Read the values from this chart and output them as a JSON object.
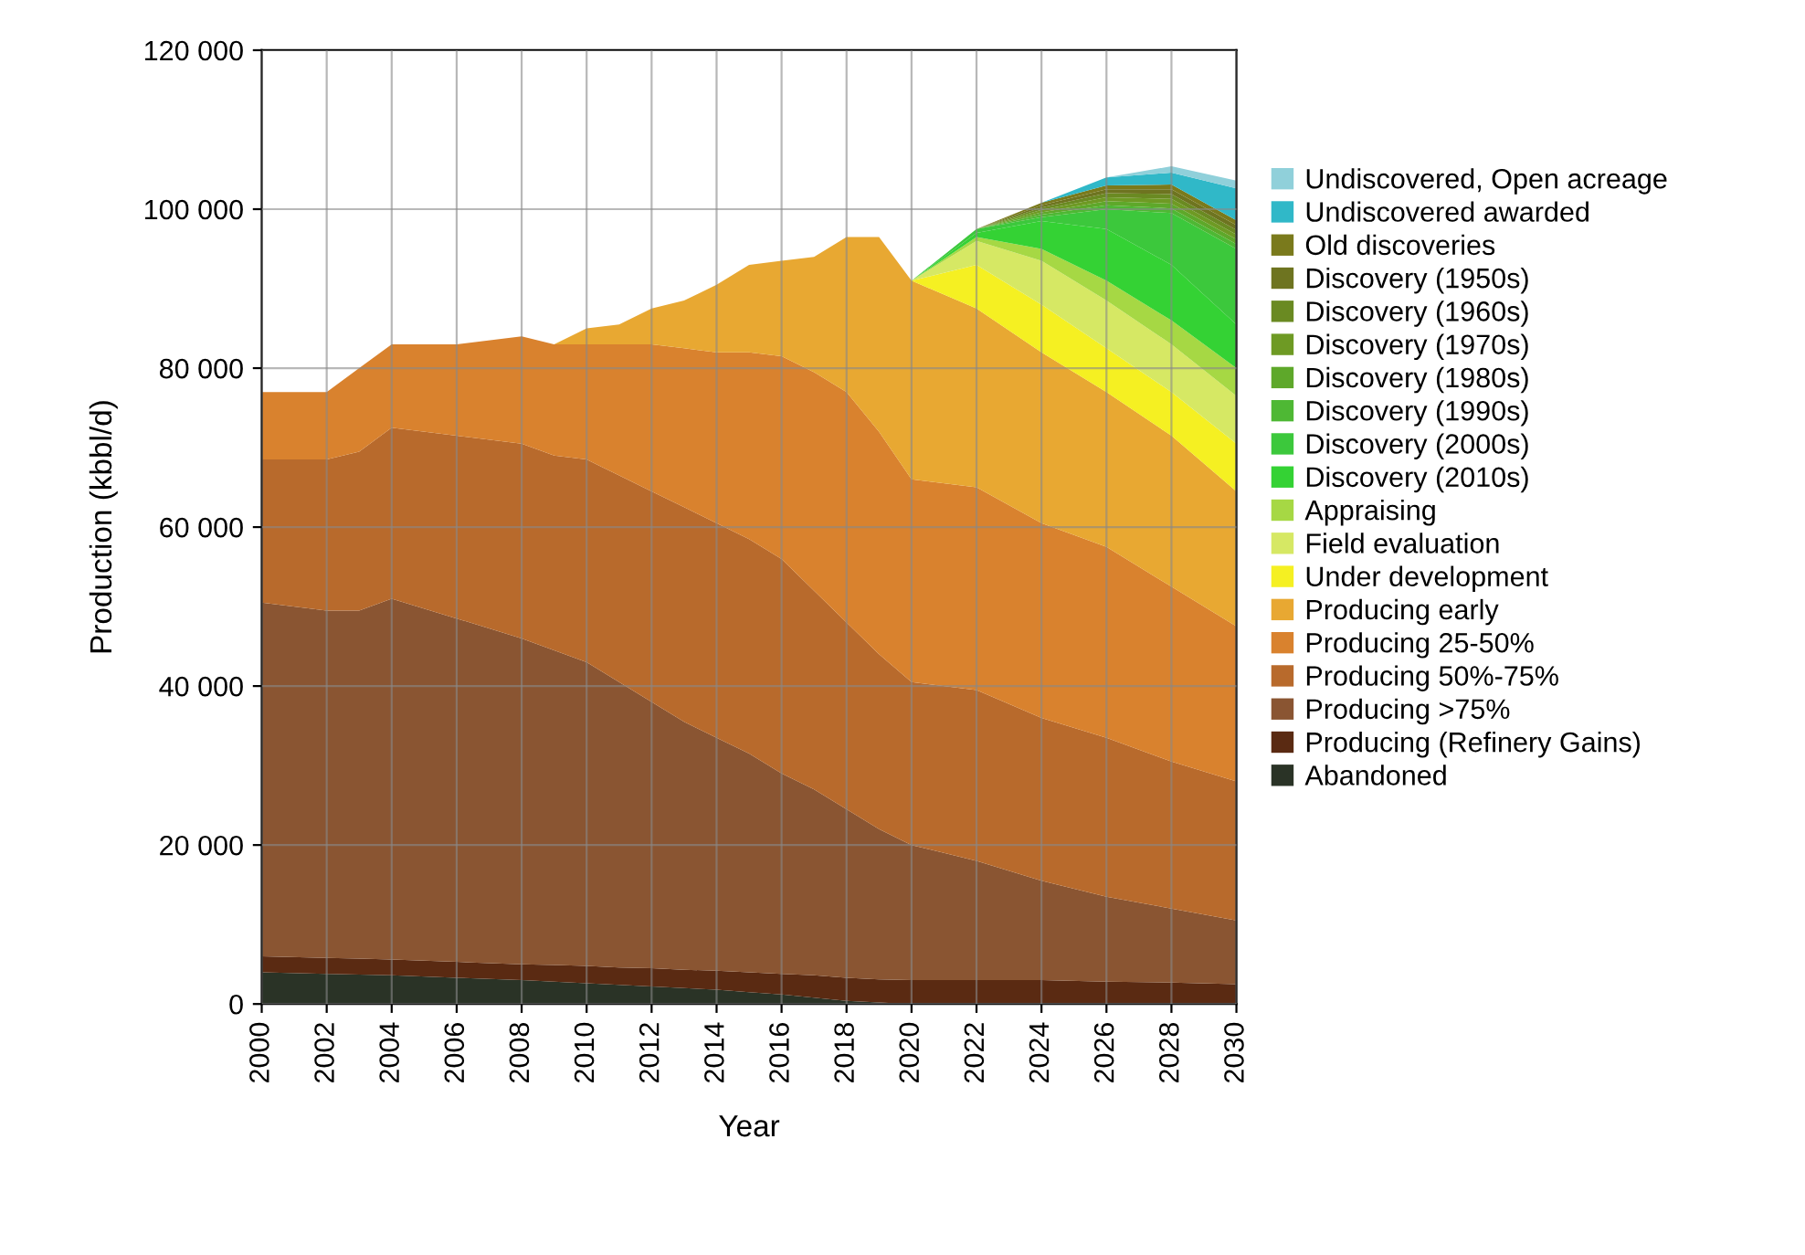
{
  "chart_data": {
    "type": "area",
    "stacked": true,
    "xlabel": "Year",
    "ylabel": "Production (kbbl/d)",
    "x": [
      2000,
      2002,
      2003,
      2004,
      2006,
      2008,
      2009,
      2010,
      2011,
      2012,
      2013,
      2014,
      2015,
      2016,
      2017,
      2018,
      2019,
      2020,
      2022,
      2024,
      2026,
      2028,
      2030
    ],
    "xlim": [
      2000,
      2030
    ],
    "xticks": [
      2000,
      2002,
      2004,
      2006,
      2008,
      2010,
      2012,
      2014,
      2016,
      2018,
      2020,
      2022,
      2024,
      2026,
      2028,
      2030
    ],
    "ylim": [
      0,
      120000
    ],
    "yticks": [
      {
        "value": 0,
        "label": "0"
      },
      {
        "value": 20000,
        "label": "20 000"
      },
      {
        "value": 40000,
        "label": "40 000"
      },
      {
        "value": 60000,
        "label": "60 000"
      },
      {
        "value": 80000,
        "label": "80 000"
      },
      {
        "value": 100000,
        "label": "100 000"
      },
      {
        "value": 120000,
        "label": "120 000"
      }
    ],
    "grid": true,
    "legend": "right",
    "series": [
      {
        "name": "Abandoned",
        "color": "#2a3326",
        "values": [
          4000,
          3800,
          3700,
          3600,
          3300,
          3000,
          2800,
          2600,
          2400,
          2200,
          2000,
          1800,
          1500,
          1200,
          800,
          400,
          200,
          0,
          null,
          null,
          null,
          null,
          null
        ]
      },
      {
        "name": "Producing (Refinery Gains)",
        "color": "#5a2a12",
        "values": [
          2000,
          2000,
          2000,
          2000,
          2000,
          2000,
          2100,
          2200,
          2200,
          2300,
          2300,
          2400,
          2500,
          2600,
          2800,
          2900,
          2900,
          3000,
          3000,
          3000,
          2800,
          2700,
          2500
        ]
      },
      {
        "name": "Producing >75%",
        "color": "#8a5532",
        "values": [
          44500,
          43700,
          43800,
          45400,
          43200,
          41000,
          39600,
          38200,
          35900,
          33500,
          31200,
          29300,
          27500,
          25200,
          23400,
          21200,
          18900,
          17000,
          15000,
          12500,
          10700,
          9300,
          8000
        ]
      },
      {
        "name": "Producing 50%-75%",
        "color": "#b86a2c",
        "values": [
          18000,
          19000,
          20000,
          21500,
          23000,
          24500,
          24500,
          25500,
          26000,
          26500,
          27000,
          27000,
          27000,
          27000,
          25000,
          23500,
          22000,
          20500,
          21500,
          20500,
          20000,
          18500,
          17500
        ]
      },
      {
        "name": "Producing 25-50%",
        "color": "#d9822e",
        "values": [
          8500,
          8500,
          10500,
          10500,
          11500,
          13500,
          14000,
          14500,
          16500,
          18500,
          20000,
          21500,
          23500,
          25500,
          27500,
          29000,
          28000,
          25500,
          25500,
          24500,
          24000,
          22000,
          19500
        ]
      },
      {
        "name": "Producing early",
        "color": "#e8a832",
        "values": [
          null,
          null,
          null,
          null,
          null,
          null,
          0,
          2000,
          2500,
          4500,
          6000,
          8500,
          11000,
          12000,
          14500,
          19500,
          24500,
          25000,
          22500,
          21500,
          19500,
          19000,
          17000
        ]
      },
      {
        "name": "Under development",
        "color": "#f5f022",
        "values": [
          null,
          null,
          null,
          null,
          null,
          null,
          null,
          null,
          null,
          null,
          null,
          null,
          null,
          null,
          null,
          null,
          null,
          0,
          5500,
          6000,
          5500,
          5500,
          6000
        ]
      },
      {
        "name": "Field evaluation",
        "color": "#d6e864",
        "values": [
          null,
          null,
          null,
          null,
          null,
          null,
          null,
          null,
          null,
          null,
          null,
          null,
          null,
          null,
          null,
          null,
          null,
          0,
          3000,
          5500,
          6000,
          6000,
          6000
        ]
      },
      {
        "name": "Appraising",
        "color": "#a6d844",
        "values": [
          null,
          null,
          null,
          null,
          null,
          null,
          null,
          null,
          null,
          null,
          null,
          null,
          null,
          null,
          null,
          null,
          null,
          0,
          500,
          1500,
          2500,
          3000,
          3500
        ]
      },
      {
        "name": "Discovery (2010s)",
        "color": "#34d234",
        "values": [
          null,
          null,
          null,
          null,
          null,
          null,
          null,
          null,
          null,
          null,
          null,
          null,
          null,
          null,
          null,
          null,
          null,
          0,
          500,
          3500,
          6500,
          7000,
          5500
        ]
      },
      {
        "name": "Discovery (2000s)",
        "color": "#3cc83c",
        "values": [
          null,
          null,
          null,
          null,
          null,
          null,
          null,
          null,
          null,
          null,
          null,
          null,
          null,
          null,
          null,
          null,
          null,
          0,
          500,
          500,
          2500,
          6500,
          9500
        ]
      },
      {
        "name": "Discovery (1990s)",
        "color": "#4eb834",
        "values": [
          null,
          null,
          null,
          null,
          null,
          null,
          null,
          null,
          null,
          null,
          null,
          null,
          null,
          null,
          null,
          null,
          null,
          null,
          0,
          300,
          500,
          600,
          600
        ]
      },
      {
        "name": "Discovery (1980s)",
        "color": "#5ea82a",
        "values": [
          null,
          null,
          null,
          null,
          null,
          null,
          null,
          null,
          null,
          null,
          null,
          null,
          null,
          null,
          null,
          null,
          null,
          null,
          0,
          300,
          500,
          600,
          600
        ]
      },
      {
        "name": "Discovery (1970s)",
        "color": "#6e9a24",
        "values": [
          null,
          null,
          null,
          null,
          null,
          null,
          null,
          null,
          null,
          null,
          null,
          null,
          null,
          null,
          null,
          null,
          null,
          null,
          0,
          300,
          500,
          600,
          600
        ]
      },
      {
        "name": "Discovery (1960s)",
        "color": "#6a8a22",
        "values": [
          null,
          null,
          null,
          null,
          null,
          null,
          null,
          null,
          null,
          null,
          null,
          null,
          null,
          null,
          null,
          null,
          null,
          null,
          0,
          300,
          500,
          600,
          600
        ]
      },
      {
        "name": "Discovery (1950s)",
        "color": "#6e7420",
        "values": [
          null,
          null,
          null,
          null,
          null,
          null,
          null,
          null,
          null,
          null,
          null,
          null,
          null,
          null,
          null,
          null,
          null,
          null,
          0,
          300,
          500,
          600,
          600
        ]
      },
      {
        "name": "Old discoveries",
        "color": "#7a7a1c",
        "values": [
          null,
          null,
          null,
          null,
          null,
          null,
          null,
          null,
          null,
          null,
          null,
          null,
          null,
          null,
          null,
          null,
          null,
          null,
          0,
          300,
          500,
          600,
          600
        ]
      },
      {
        "name": "Undiscovered awarded",
        "color": "#30b8c8",
        "values": [
          null,
          null,
          null,
          null,
          null,
          null,
          null,
          null,
          null,
          null,
          null,
          null,
          null,
          null,
          null,
          null,
          null,
          null,
          null,
          0,
          1000,
          1500,
          4000
        ]
      },
      {
        "name": "Undiscovered, Open acreage",
        "color": "#90d0da",
        "values": [
          null,
          null,
          null,
          null,
          null,
          null,
          null,
          null,
          null,
          null,
          null,
          null,
          null,
          null,
          null,
          null,
          null,
          null,
          null,
          null,
          0,
          800,
          1000
        ]
      }
    ]
  }
}
